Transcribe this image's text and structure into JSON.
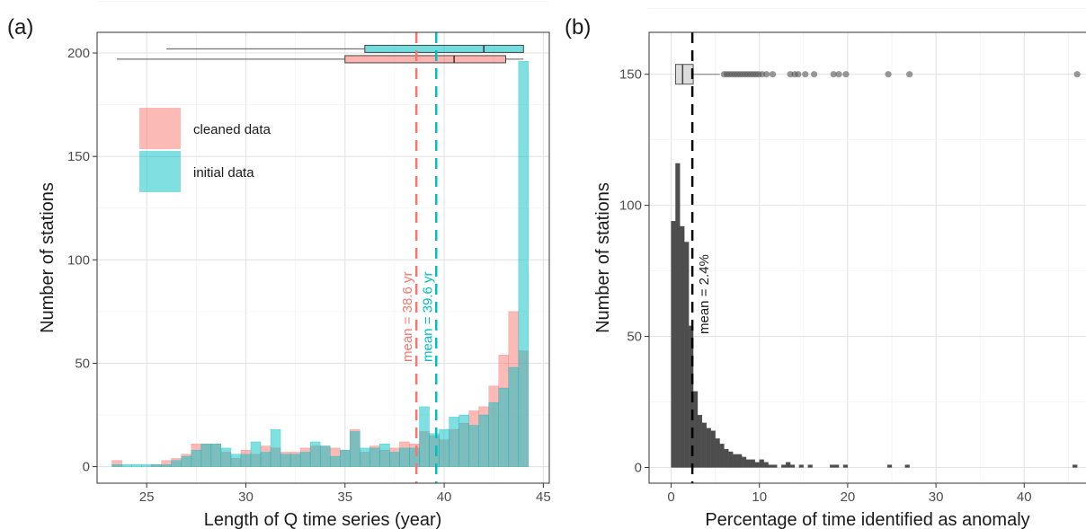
{
  "chart_data": [
    {
      "panel": "(a)",
      "type": "bar",
      "xlabel": "Length of Q time series (year)",
      "ylabel": "Number of stations",
      "xlim": [
        22.5,
        45.3
      ],
      "ylim": [
        -8,
        210
      ],
      "xticks": [
        "25",
        "30",
        "35",
        "40",
        "45"
      ],
      "yticks": [
        "0",
        "50",
        "100",
        "150",
        "200"
      ],
      "bin_width": 0.5,
      "bins_left": [
        23.25,
        23.75,
        24.25,
        24.75,
        25.25,
        25.75,
        26.25,
        26.75,
        27.25,
        27.75,
        28.25,
        28.75,
        29.25,
        29.75,
        30.25,
        30.75,
        31.25,
        31.75,
        32.25,
        32.75,
        33.25,
        33.75,
        34.25,
        34.75,
        35.25,
        35.75,
        36.25,
        36.75,
        37.25,
        37.75,
        38.25,
        38.75,
        39.25,
        39.75,
        40.25,
        40.75,
        41.25,
        41.75,
        42.25,
        42.75,
        43.25,
        43.75
      ],
      "series": [
        {
          "name": "cleaned data",
          "color": "#F8766D",
          "values": [
            3,
            0,
            0,
            0,
            1,
            3,
            4,
            6,
            11,
            11,
            11,
            7,
            4,
            8,
            6,
            10,
            9,
            7,
            7,
            9,
            10,
            10,
            9,
            8,
            18,
            7,
            10,
            8,
            9,
            12,
            11,
            17,
            15,
            13,
            18,
            21,
            27,
            29,
            39,
            54,
            75,
            56
          ]
        },
        {
          "name": "initial data",
          "color": "#00BFC4",
          "values": [
            1,
            1,
            1,
            1,
            1,
            1,
            3,
            5,
            8,
            11,
            11,
            9,
            6,
            6,
            12,
            7,
            18,
            6,
            6,
            7,
            12,
            10,
            5,
            8,
            17,
            9,
            9,
            11,
            7,
            9,
            9,
            29,
            16,
            18,
            24,
            25,
            20,
            25,
            31,
            38,
            48,
            196
          ]
        }
      ],
      "legend": {
        "position": "top-left",
        "entries": [
          "cleaned data",
          "initial data"
        ]
      },
      "boxplots": [
        {
          "series": "initial data",
          "color": "#00BFC4",
          "y": 202,
          "whisker_low": 26.0,
          "q1": 36.0,
          "median": 42.0,
          "q3": 44.0,
          "whisker_high": 44.0
        },
        {
          "series": "cleaned data",
          "color": "#F8766D",
          "y": 197,
          "whisker_low": 23.5,
          "q1": 35.0,
          "median": 40.5,
          "q3": 43.1,
          "whisker_high": 44.0
        }
      ],
      "mean_lines": [
        {
          "x": 38.6,
          "color": "#F8766D",
          "label": "mean = 38.6 yr"
        },
        {
          "x": 39.6,
          "color": "#00BFC4",
          "label": "mean = 39.6 yr"
        }
      ],
      "grid": true
    },
    {
      "panel": "(b)",
      "type": "bar",
      "xlabel": "Percentage of time identified as anomaly",
      "ylabel": "Number of stations",
      "xlim": [
        -2.5,
        47
      ],
      "ylim": [
        -6,
        166
      ],
      "xticks": [
        "0",
        "10",
        "20",
        "30",
        "40"
      ],
      "yticks": [
        "0",
        "50",
        "100",
        "150"
      ],
      "bin_width": 0.5,
      "bins_left": [
        0.0,
        0.5,
        1.0,
        1.5,
        2.0,
        2.5,
        3.0,
        3.5,
        4.0,
        4.5,
        5.0,
        5.5,
        6.0,
        6.5,
        7.0,
        7.5,
        8.0,
        8.5,
        9.0,
        9.5,
        10.0,
        10.5,
        11.0,
        11.5,
        12.5,
        13.0,
        13.5,
        14.5,
        15.5,
        18.0,
        18.5,
        19.5,
        24.5,
        26.5,
        45.5
      ],
      "values": [
        94,
        116,
        92,
        86,
        54,
        29,
        20,
        17,
        15,
        14,
        11,
        9,
        7,
        6,
        5,
        5,
        4,
        3,
        3,
        2,
        3,
        2,
        1,
        1,
        1,
        2,
        1,
        1,
        1,
        1,
        1,
        1,
        1,
        1,
        1
      ],
      "color": "#4d4d4d",
      "boxplot": {
        "y": 150,
        "q1": 0.5,
        "median": 1.3,
        "q3": 2.5,
        "whisker_high": 5.5,
        "outliers": [
          6,
          6.3,
          6.6,
          6.9,
          7.2,
          7.5,
          7.8,
          8.1,
          8.4,
          8.7,
          9,
          9.3,
          9.6,
          9.9,
          10.3,
          10.8,
          11.5,
          13.5,
          14,
          14.4,
          15.2,
          16.2,
          18.4,
          19,
          19.8,
          24.6,
          27,
          46
        ]
      },
      "mean_lines": [
        {
          "x": 2.4,
          "color": "#000000",
          "label": "mean = 2.4%"
        }
      ],
      "grid": true
    }
  ]
}
